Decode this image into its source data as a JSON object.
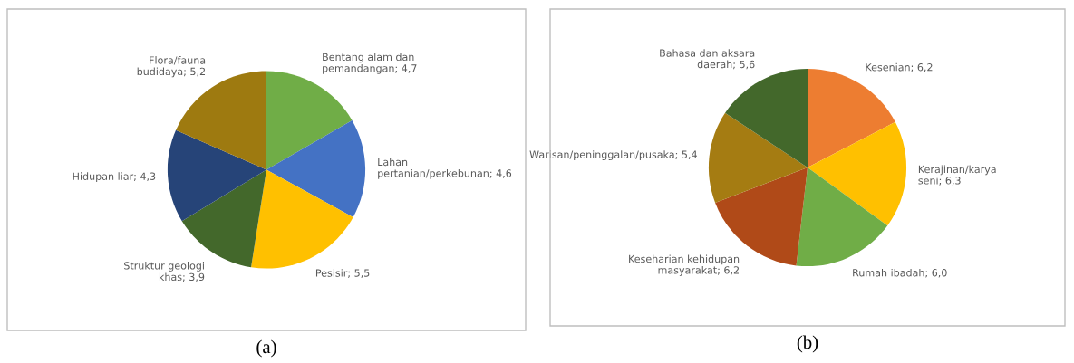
{
  "chart_data": [
    {
      "type": "pie",
      "categories": [
        "Bentang alam dan pemandangan",
        "Lahan pertanian/perkebunan",
        "Pesisir",
        "Struktur geologi khas",
        "Hidupan liar",
        "Flora/fauna budidaya"
      ],
      "values": [
        4.7,
        4.6,
        5.5,
        3.9,
        4.3,
        5.2
      ],
      "value_labels": [
        "4,7",
        "4,6",
        "5,5",
        "3,9",
        "4,3",
        "5,2"
      ],
      "colors": [
        "#70ad47",
        "#4472c4",
        "#ffc000",
        "#43682b",
        "#264478",
        "#9e7a10"
      ],
      "annotations": [
        "(a)"
      ]
    },
    {
      "type": "pie",
      "categories": [
        "Kesenian",
        "Kerajinan/karya seni",
        "Rumah ibadah",
        "Keseharian kehidupan masyarakat",
        "Warisan/peninggalan/pusaka",
        "Bahasa dan aksara daerah"
      ],
      "values": [
        6.2,
        6.3,
        6.0,
        6.2,
        5.4,
        5.6
      ],
      "value_labels": [
        "6,2",
        "6,3",
        "6,0",
        "6,2",
        "5,4",
        "5,6"
      ],
      "colors": [
        "#ed7d31",
        "#ffc000",
        "#70ad47",
        "#b04a18",
        "#a57c12",
        "#43682b"
      ],
      "annotations": [
        "(b)"
      ]
    }
  ]
}
